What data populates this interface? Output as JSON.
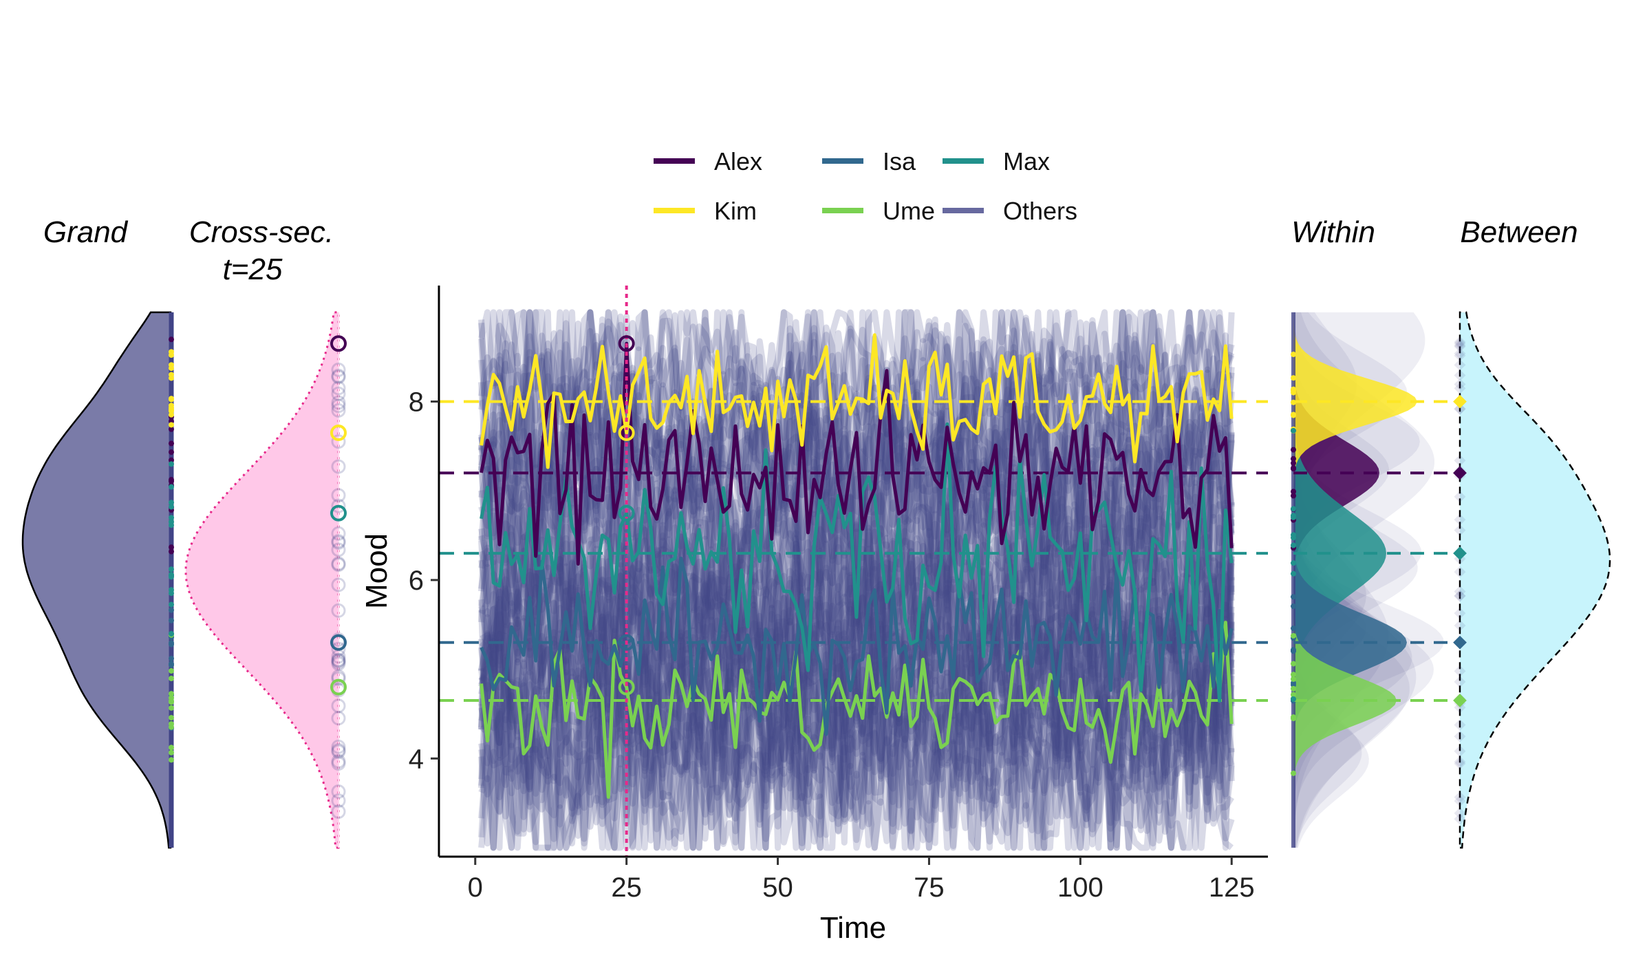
{
  "panels": {
    "grand": "Grand",
    "cross_line1": "Cross-sec.",
    "cross_line2": "t=25",
    "within": "Within",
    "between": "Between"
  },
  "colors": {
    "Alex": "#440154",
    "Kim": "#fde725",
    "Isa": "#31688e",
    "Ume": "#7ad151",
    "Max": "#21918c",
    "Others": "#414487",
    "cross_section": "#e7298a",
    "cross_fill": "#ffc8e8",
    "between_fill": "#c8f4fc",
    "grand_fill": "#7a7ba8"
  },
  "chart_data": {
    "type": "line",
    "xlabel": "Time",
    "ylabel": "Mood",
    "xlim": [
      -6,
      131
    ],
    "ylim": [
      2.9,
      9.3
    ],
    "xticks": [
      0,
      25,
      50,
      75,
      100,
      125
    ],
    "yticks": [
      4,
      6,
      8
    ],
    "cross_section_time": 25,
    "legend_position": "top",
    "series": [
      {
        "name": "Alex",
        "mean": 7.2,
        "value_at_t25": 8.65
      },
      {
        "name": "Kim",
        "mean": 8.0,
        "value_at_t25": 7.65
      },
      {
        "name": "Isa",
        "mean": 5.3,
        "value_at_t25": 5.3
      },
      {
        "name": "Ume",
        "mean": 4.65,
        "value_at_t25": 4.8
      },
      {
        "name": "Max",
        "mean": 6.3,
        "value_at_t25": 6.75
      },
      {
        "name": "Others"
      }
    ]
  }
}
